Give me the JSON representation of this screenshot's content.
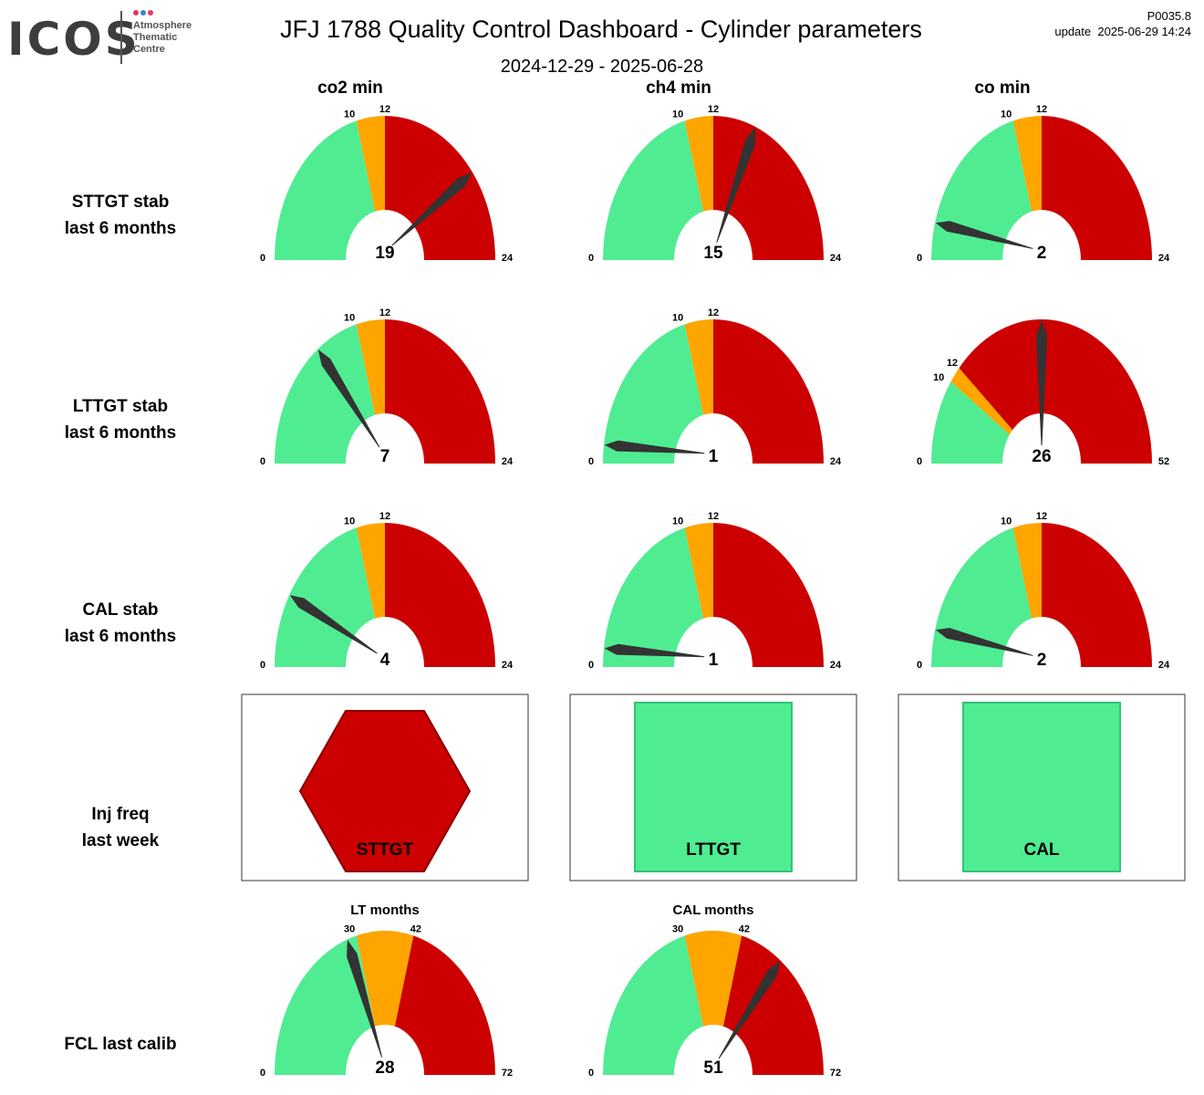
{
  "logo": {
    "word": "ICOS",
    "line1": "Atmosphere",
    "line2": "Thematic",
    "line3": "Centre",
    "dot_colors": [
      "#e8336e",
      "#2f8ad8",
      "#e8336e"
    ]
  },
  "header": {
    "title": "JFJ 1788 Quality Control Dashboard - Cylinder parameters",
    "date_range": "2024-12-29 - 2025-06-28",
    "version": "P0035.8",
    "update": "update  2025-06-29 14:24"
  },
  "columns": [
    "co2 min",
    "ch4 min",
    "co min"
  ],
  "rows": [
    {
      "line1": "STTGT stab",
      "line2": "last 6 months"
    },
    {
      "line1": "LTTGT stab",
      "line2": "last 6 months"
    },
    {
      "line1": "CAL stab",
      "line2": "last 6 months"
    },
    {
      "line1": "Inj freq",
      "line2": "last week"
    },
    {
      "line1": "FCL last calib",
      "line2": ""
    }
  ],
  "colors": {
    "green": "#4fec92",
    "orange": "#ffa500",
    "red": "#cc0000",
    "needle": "#333333",
    "hex_border": "#8b0000",
    "square_border": "#33c27a"
  },
  "chart_data": [
    {
      "type": "gauge",
      "row": "STTGT stab",
      "column": "co2 min",
      "value": 19,
      "min": 0,
      "max": 24,
      "thresholds": [
        10,
        12
      ]
    },
    {
      "type": "gauge",
      "row": "STTGT stab",
      "column": "ch4 min",
      "value": 15,
      "min": 0,
      "max": 24,
      "thresholds": [
        10,
        12
      ]
    },
    {
      "type": "gauge",
      "row": "STTGT stab",
      "column": "co min",
      "value": 2,
      "min": 0,
      "max": 24,
      "thresholds": [
        10,
        12
      ]
    },
    {
      "type": "gauge",
      "row": "LTTGT stab",
      "column": "co2 min",
      "value": 7,
      "min": 0,
      "max": 24,
      "thresholds": [
        10,
        12
      ]
    },
    {
      "type": "gauge",
      "row": "LTTGT stab",
      "column": "ch4 min",
      "value": 1,
      "min": 0,
      "max": 24,
      "thresholds": [
        10,
        12
      ]
    },
    {
      "type": "gauge",
      "row": "LTTGT stab",
      "column": "co min",
      "value": 26,
      "min": 0,
      "max": 52,
      "thresholds": [
        10,
        12
      ]
    },
    {
      "type": "gauge",
      "row": "CAL stab",
      "column": "co2 min",
      "value": 4,
      "min": 0,
      "max": 24,
      "thresholds": [
        10,
        12
      ]
    },
    {
      "type": "gauge",
      "row": "CAL stab",
      "column": "ch4 min",
      "value": 1,
      "min": 0,
      "max": 24,
      "thresholds": [
        10,
        12
      ]
    },
    {
      "type": "gauge",
      "row": "CAL stab",
      "column": "co min",
      "value": 2,
      "min": 0,
      "max": 24,
      "thresholds": [
        10,
        12
      ]
    },
    {
      "type": "status",
      "row": "Inj freq",
      "label": "STTGT",
      "shape": "hexagon",
      "status": "red"
    },
    {
      "type": "status",
      "row": "Inj freq",
      "label": "LTTGT",
      "shape": "square",
      "status": "green"
    },
    {
      "type": "status",
      "row": "Inj freq",
      "label": "CAL",
      "shape": "square",
      "status": "green"
    },
    {
      "type": "gauge",
      "row": "FCL last calib",
      "title": "LT months",
      "value": 28,
      "min": 0,
      "max": 72,
      "thresholds": [
        30,
        42
      ]
    },
    {
      "type": "gauge",
      "row": "FCL last calib",
      "title": "CAL months",
      "value": 51,
      "min": 0,
      "max": 72,
      "thresholds": [
        30,
        42
      ]
    }
  ]
}
